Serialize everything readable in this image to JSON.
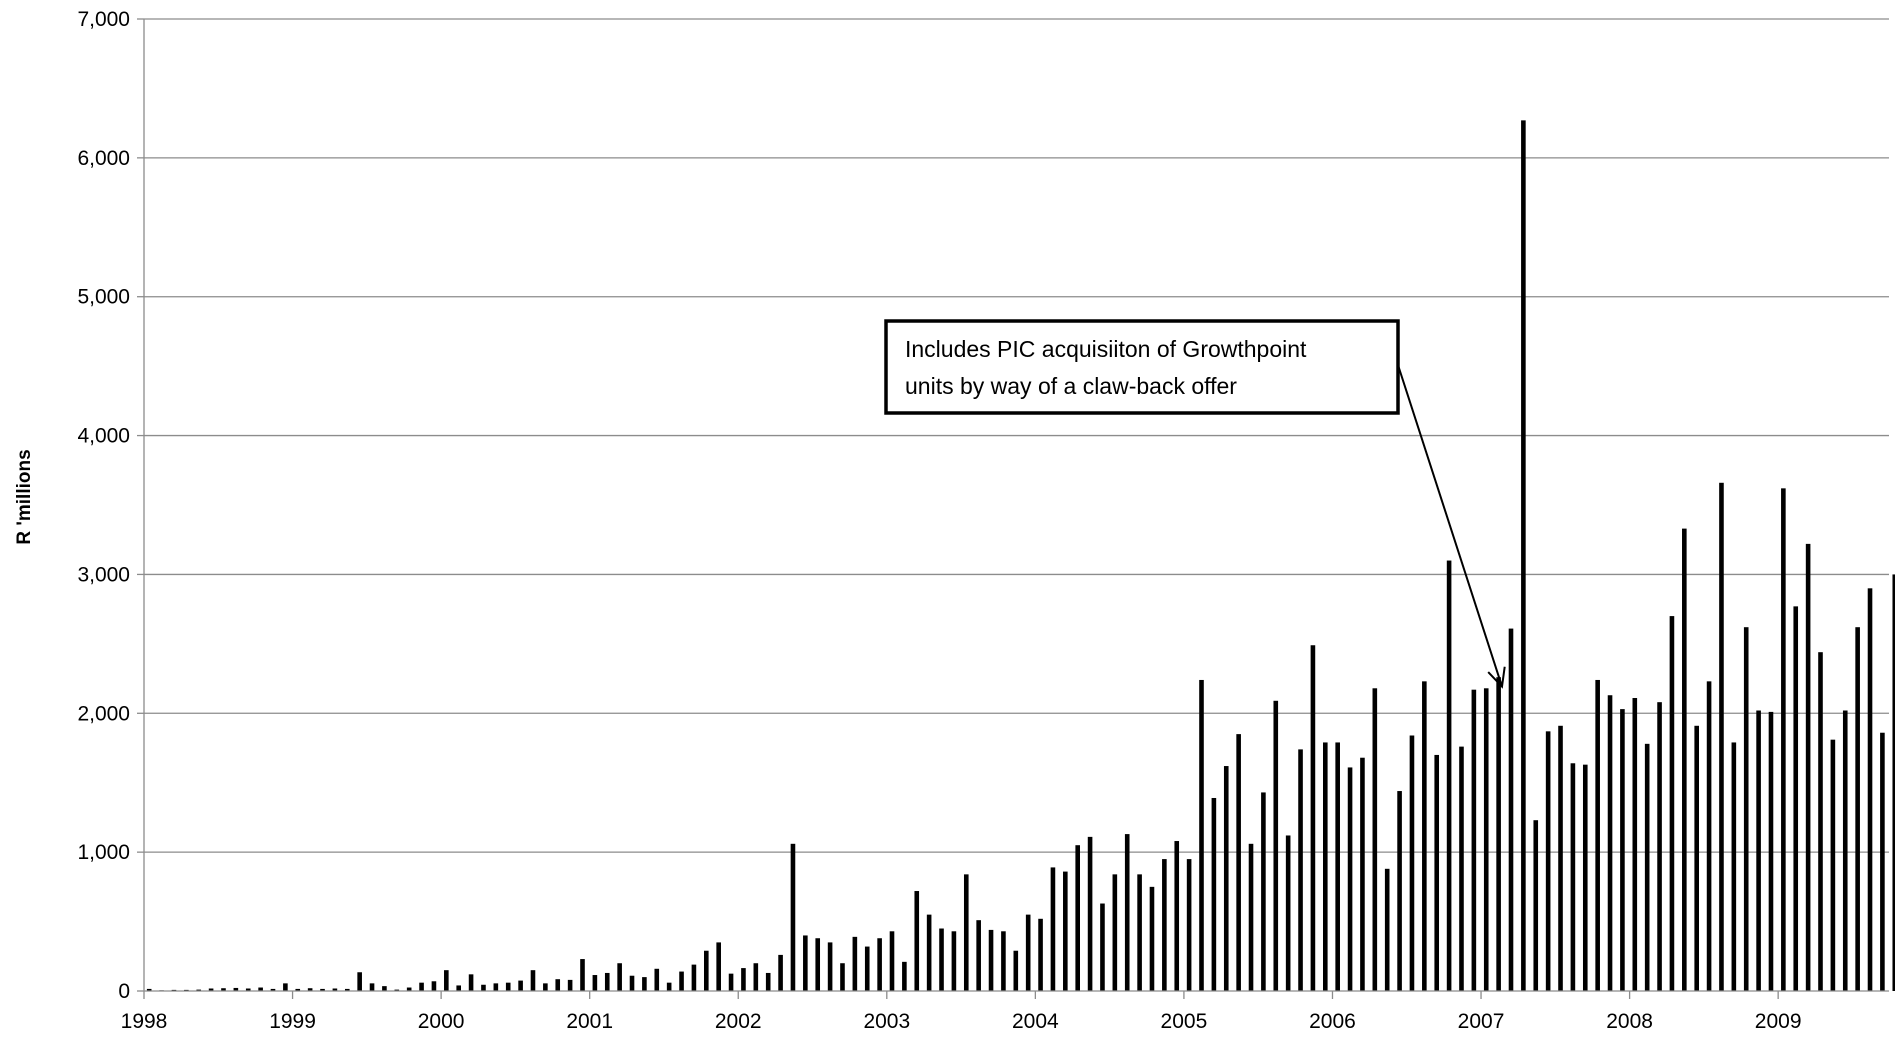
{
  "chart_data": {
    "type": "bar",
    "title": "",
    "xlabel": "",
    "ylabel": "R 'millions",
    "ylim": [
      0,
      7000
    ],
    "yticks": [
      "0",
      "1,000",
      "2,000",
      "3,000",
      "4,000",
      "5,000",
      "6,000",
      "7,000"
    ],
    "xtick_labels": [
      "1998",
      "1999",
      "2000",
      "2001",
      "2002",
      "2003",
      "2004",
      "2005",
      "2006",
      "2007",
      "2008",
      "2009"
    ],
    "grid": "horizontal",
    "legend": "none",
    "start_period": "1998-01",
    "frequency": "monthly",
    "values": [
      15,
      5,
      8,
      8,
      10,
      18,
      20,
      22,
      18,
      25,
      15,
      55,
      15,
      20,
      15,
      18,
      15,
      135,
      55,
      35,
      10,
      25,
      60,
      70,
      150,
      40,
      120,
      45,
      55,
      60,
      75,
      150,
      55,
      85,
      80,
      230,
      115,
      130,
      200,
      110,
      100,
      160,
      60,
      140,
      190,
      290,
      350,
      125,
      165,
      200,
      130,
      260,
      1060,
      400,
      380,
      350,
      200,
      390,
      320,
      380,
      430,
      210,
      720,
      550,
      450,
      430,
      840,
      510,
      440,
      430,
      290,
      550,
      520,
      890,
      860,
      1050,
      1110,
      630,
      840,
      1130,
      840,
      750,
      950,
      1080,
      950,
      2240,
      1390,
      1620,
      1850,
      1060,
      1430,
      2090,
      1120,
      1740,
      2490,
      1790,
      1790,
      1610,
      1680,
      2180,
      880,
      1440,
      1840,
      2230,
      1700,
      3100,
      1760,
      2170,
      2180,
      2260,
      2610,
      6270,
      1230,
      1870,
      1910,
      1640,
      1630,
      2240,
      2130,
      2030,
      2110,
      1780,
      2080,
      2700,
      3330,
      1910,
      2230,
      3660,
      1790,
      2620,
      2020,
      2010,
      3620,
      2770,
      3220,
      2440,
      1810,
      2020,
      2620,
      2900,
      1860,
      3000
    ],
    "annotation": {
      "lines": [
        "Includes PIC acquisiiton of Growthpoint",
        "units by way of a claw-back offer"
      ],
      "points_to_index": 110
    }
  }
}
